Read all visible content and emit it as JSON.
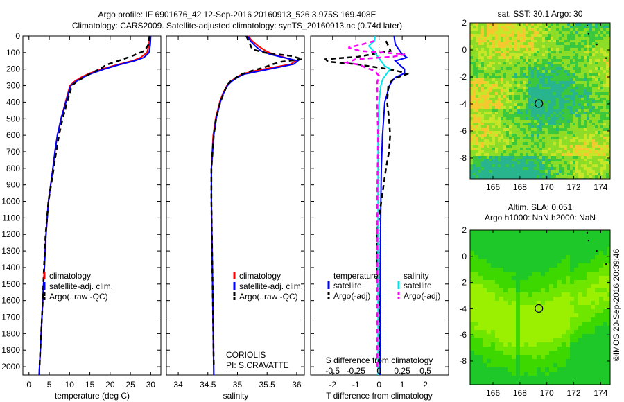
{
  "title": {
    "line1": "Argo profile: IF 6901676_42 12-Sep-2016 20160913_526 3.975S 169.408E",
    "line2": "Climatology: CARS2009. Satellite-adjusted climatology: synTS_20160913.nc (0.74d later)"
  },
  "colors": {
    "climatology": "#ff0000",
    "satellite": "#0000ff",
    "argo": "#000000",
    "sal_satellite": "#00e5ee",
    "sal_argo": "#ff00ff"
  },
  "chart_data": [
    {
      "type": "line",
      "id": "temperature",
      "xlabel": "temperature (deg C)",
      "ylabel": "",
      "xlim": [
        -1.5,
        32.5
      ],
      "ylim": [
        2050,
        0
      ],
      "xticks": [
        0,
        5,
        10,
        15,
        20,
        25,
        30
      ],
      "yticks": [
        0,
        100,
        200,
        300,
        400,
        500,
        600,
        700,
        800,
        900,
        1000,
        1100,
        1200,
        1300,
        1400,
        1500,
        1600,
        1700,
        1800,
        1900,
        2000
      ],
      "legend": [
        "climatology",
        "satellite-adj. clim.",
        "Argo(..raw -QC)"
      ],
      "series": [
        {
          "name": "climatology",
          "color": "#ff0000",
          "dash": false,
          "depth": [
            0,
            50,
            100,
            130,
            150,
            175,
            200,
            225,
            250,
            275,
            300,
            400,
            500,
            600,
            700,
            800,
            1000,
            1200,
            1400,
            1600,
            1800,
            2000,
            2050
          ],
          "values": [
            29.7,
            29.6,
            29.1,
            27.5,
            25.5,
            21.5,
            18.0,
            15.0,
            12.8,
            11.2,
            10.1,
            9.0,
            7.9,
            7.0,
            6.4,
            5.9,
            4.8,
            4.2,
            3.8,
            3.4,
            3.0,
            2.6,
            2.5
          ]
        },
        {
          "name": "satellite-adj. clim.",
          "color": "#0000ff",
          "dash": false,
          "depth": [
            0,
            50,
            100,
            130,
            150,
            175,
            200,
            225,
            250,
            275,
            300,
            400,
            500,
            600,
            700,
            800,
            1000,
            1200,
            1400,
            1600,
            1800,
            2000,
            2050
          ],
          "values": [
            30.0,
            29.9,
            29.6,
            28.3,
            26.0,
            22.0,
            18.6,
            15.6,
            13.3,
            11.6,
            10.3,
            9.1,
            7.9,
            7.0,
            6.4,
            5.9,
            4.8,
            4.2,
            3.8,
            3.4,
            3.0,
            2.6,
            2.5
          ]
        },
        {
          "name": "Argo(..raw -QC)",
          "color": "#000000",
          "dash": true,
          "depth": [
            0,
            50,
            90,
            120,
            150,
            175,
            200,
            225,
            250,
            275,
            300,
            400,
            500,
            600,
            700,
            800,
            1000,
            1200,
            1400,
            1600,
            1800,
            2000
          ],
          "values": [
            29.7,
            29.5,
            28.4,
            25.5,
            22.0,
            19.0,
            17.5,
            15.2,
            13.5,
            11.8,
            10.6,
            9.4,
            8.3,
            7.4,
            6.7,
            6.1,
            4.8,
            4.1,
            3.7,
            3.4,
            3.0,
            2.6
          ]
        }
      ]
    },
    {
      "type": "line",
      "id": "salinity",
      "xlabel": "salinity",
      "xlim": [
        33.8,
        36.13
      ],
      "ylim": [
        2050,
        0
      ],
      "xticks": [
        34,
        34.5,
        35,
        35.5,
        36
      ],
      "legend": [
        "climatology",
        "satellite-adj. clim.",
        "Argo(..raw -QC)"
      ],
      "annotation": [
        "CORIOLIS",
        "PI: S.CRAVATTE"
      ],
      "series": [
        {
          "name": "climatology",
          "color": "#ff0000",
          "dash": false,
          "depth": [
            0,
            30,
            60,
            90,
            110,
            130,
            150,
            170,
            190,
            210,
            230,
            250,
            275,
            300,
            350,
            400,
            500,
            600,
            800,
            1000,
            1500,
            2050
          ],
          "values": [
            35.18,
            35.25,
            35.35,
            35.48,
            35.6,
            35.8,
            35.98,
            35.9,
            35.6,
            35.3,
            35.08,
            34.98,
            34.88,
            34.82,
            34.75,
            34.7,
            34.63,
            34.59,
            34.56,
            34.56,
            34.58,
            34.6
          ]
        },
        {
          "name": "satellite-adj. clim.",
          "color": "#0000ff",
          "dash": false,
          "depth": [
            0,
            30,
            60,
            90,
            110,
            130,
            150,
            170,
            190,
            210,
            230,
            250,
            275,
            300,
            350,
            400,
            500,
            600,
            800,
            1000,
            1500,
            2050
          ],
          "values": [
            35.17,
            35.22,
            35.3,
            35.4,
            35.55,
            35.78,
            36.02,
            35.95,
            35.68,
            35.4,
            35.12,
            35.0,
            34.9,
            34.83,
            34.76,
            34.71,
            34.64,
            34.6,
            34.56,
            34.56,
            34.58,
            34.6
          ]
        },
        {
          "name": "Argo(..raw -QC)",
          "color": "#000000",
          "dash": true,
          "depth": [
            0,
            40,
            80,
            100,
            120,
            140,
            155,
            170,
            190,
            210,
            230,
            250,
            275,
            300,
            400,
            500,
            600,
            800,
            1000,
            1500,
            2000
          ],
          "values": [
            35.15,
            35.2,
            35.25,
            35.45,
            35.9,
            36.1,
            35.75,
            35.6,
            35.45,
            35.25,
            35.08,
            34.98,
            34.88,
            34.82,
            34.71,
            34.64,
            34.6,
            34.56,
            34.56,
            34.58,
            34.6
          ]
        }
      ]
    },
    {
      "type": "line",
      "id": "difference",
      "xlabel": "T difference from climatology",
      "xlabel_top": "S difference from climatology",
      "xlim": [
        -2.95,
        3.0
      ],
      "ylim": [
        2050,
        0
      ],
      "xticks": [
        -2,
        -1,
        0,
        1,
        2
      ],
      "s_ticks": [
        -0.5,
        -0.25,
        0,
        0.25,
        0.5
      ],
      "s_tick_labels": [
        "-0.5",
        "-0.25",
        "0",
        "0.25",
        "0.5"
      ],
      "legend": {
        "temperature_header": "temperature",
        "salinity_header": "salinity",
        "satellite": "satellite",
        "argo": "Argo(-adj)"
      },
      "series": [
        {
          "name": "temperature satellite",
          "color": "#0000ff",
          "dash": false,
          "unit": "T",
          "depth": [
            0,
            50,
            80,
            110,
            130,
            150,
            170,
            200,
            225,
            250,
            275,
            300,
            400,
            500,
            600,
            800,
            1000,
            1400,
            2050
          ],
          "values": [
            0.65,
            0.7,
            0.85,
            1.0,
            1.2,
            0.7,
            0.85,
            1.1,
            1.1,
            0.7,
            0.55,
            0.45,
            0.25,
            0.2,
            0.15,
            0.1,
            0.08,
            0.05,
            0.05
          ]
        },
        {
          "name": "temperature Argo(-adj)",
          "color": "#000000",
          "dash": true,
          "unit": "T",
          "depth": [
            30,
            60,
            90,
            110,
            125,
            140,
            155,
            170,
            185,
            200,
            215,
            230,
            260,
            300,
            400,
            500,
            600,
            700,
            800,
            900,
            1000,
            1200,
            1400,
            1600,
            2000
          ],
          "values": [
            0.3,
            0.4,
            0.5,
            -0.3,
            -0.9,
            -2.3,
            -2.2,
            -1.0,
            -0.3,
            0.4,
            0.9,
            1.2,
            0.6,
            0.4,
            0.35,
            0.43,
            0.48,
            0.43,
            0.3,
            0.2,
            0.1,
            -0.1,
            -0.1,
            0.0,
            0.0
          ]
        },
        {
          "name": "salinity satellite",
          "color": "#00e5ee",
          "dash": false,
          "unit": "S",
          "depth": [
            0,
            30,
            60,
            90,
            120,
            150,
            180,
            200,
            230,
            260,
            300,
            400,
            600,
            1000,
            2050
          ],
          "values": [
            -0.04,
            -0.05,
            -0.11,
            -0.06,
            -0.02,
            0.02,
            0.06,
            0.12,
            0.08,
            0.04,
            0.02,
            0.0,
            -0.01,
            -0.01,
            -0.01
          ]
        },
        {
          "name": "salinity Argo(-adj)",
          "color": "#ff00ff",
          "dash": true,
          "unit": "S",
          "depth": [
            30,
            50,
            70,
            90,
            110,
            125,
            140,
            160,
            175,
            190,
            210,
            240,
            280,
            400,
            600,
            1000,
            1500,
            2000
          ],
          "values": [
            -0.05,
            -0.18,
            -0.33,
            -0.2,
            0.28,
            0.15,
            -0.25,
            -0.35,
            -0.2,
            -0.15,
            -0.05,
            0.0,
            -0.02,
            -0.02,
            -0.01,
            -0.02,
            -0.02,
            -0.02
          ]
        }
      ]
    },
    {
      "type": "heatmap",
      "id": "sst_map",
      "title": "sat. SST: 30.1 Argo: 30",
      "xlim": [
        164.3,
        174.7
      ],
      "ylim": [
        -9.54,
        2
      ],
      "xticks": [
        166,
        168,
        170,
        172,
        174
      ],
      "yticks": [
        2,
        0,
        -2,
        -4,
        -6,
        -8
      ],
      "marker": {
        "lon": 169.408,
        "lat": -3.975
      }
    },
    {
      "type": "heatmap",
      "id": "sla_map",
      "title_line1": "Altim. SLA: 0.051",
      "title_line2": "Argo h1000: NaN h2000: NaN",
      "xlim": [
        164.3,
        174.7
      ],
      "ylim": [
        -9.8,
        2
      ],
      "xticks": [
        166,
        168,
        170,
        172,
        174
      ],
      "yticks": [
        2,
        0,
        -2,
        -4,
        -6,
        -8
      ],
      "marker": {
        "lon": 169.408,
        "lat": -3.975
      }
    }
  ],
  "stamp": "©IMOS 20-Sep-2016 20:39:46"
}
